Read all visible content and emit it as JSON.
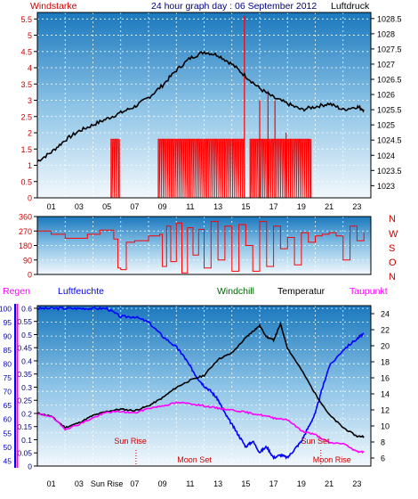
{
  "colors": {
    "background": "#ffffff",
    "plot_top": "#1f7fc0",
    "plot_bottom": "#eef6fb",
    "wind": "#ff0000",
    "pressure": "#000000",
    "direction": "#ff0000",
    "humidity": "#0000ff",
    "windchill": "#006400",
    "temperature": "#000000",
    "dewpoint": "#ff00ff",
    "rain": "#ff00ff",
    "navy_text": "#000080",
    "red_text": "#cc0000"
  },
  "top": {
    "left_title": "Windstarke",
    "center_title": "24 hour graph day : 06 September 2012",
    "right_title": "Luftdruck"
  },
  "middle": {
    "compass_labels": [
      "N",
      "W",
      "S",
      "O",
      "N"
    ]
  },
  "bottom": {
    "regen_label": "Regen",
    "humidity_label": "Luftfeuchte",
    "windchill_label": "Windchill",
    "temperature_label": "Temperatur",
    "dewpoint_label": "Taupunkt",
    "annotations": [
      {
        "text": "Sun Rise",
        "hour": 6.7,
        "row": "upper"
      },
      {
        "text": "Moon Set",
        "hour": 11.3,
        "row": "lower"
      },
      {
        "text": "Sun Set",
        "hour": 20.0,
        "row": "upper"
      },
      {
        "text": "Moon Rise",
        "hour": 21.2,
        "row": "lower"
      }
    ],
    "sun_rise_tick": "Sun Rise"
  },
  "chart_data": [
    {
      "type": "line",
      "name": "wind-pressure",
      "x_ticks": [
        "01",
        "03",
        "05",
        "07",
        "09",
        "11",
        "13",
        "15",
        "17",
        "19",
        "21",
        "23"
      ],
      "x_range_hours": [
        0,
        24
      ],
      "y_left": {
        "label": "Windstarke",
        "ticks": [
          "0",
          "0.5",
          "1",
          "1.5",
          "2",
          "2.5",
          "3",
          "3.5",
          "4",
          "4.5",
          "5",
          "5.5"
        ],
        "range": [
          0,
          5.7
        ]
      },
      "y_right": {
        "label": "Luftdruck",
        "ticks": [
          "1023",
          "1023.5",
          "1024",
          "1024.5",
          "1025",
          "1025.5",
          "1026",
          "1026.5",
          "1027",
          "1027.5",
          "1028",
          "1028.5"
        ],
        "range": [
          1022.6,
          1028.7
        ]
      },
      "pressure": {
        "x": [
          0,
          1,
          2,
          3,
          4,
          5,
          6,
          7,
          8,
          9,
          10,
          11,
          12,
          13,
          14,
          15,
          16,
          17,
          18,
          19,
          20,
          21,
          22,
          23,
          23.5
        ],
        "y": [
          1023.8,
          1024.1,
          1024.5,
          1024.8,
          1025.0,
          1025.2,
          1025.4,
          1025.6,
          1025.9,
          1026.3,
          1026.8,
          1027.2,
          1027.4,
          1027.3,
          1027.0,
          1026.6,
          1026.2,
          1025.9,
          1025.7,
          1025.5,
          1025.6,
          1025.7,
          1025.5,
          1025.6,
          1025.5
        ]
      },
      "wind": {
        "gust_segments": [
          [
            5.3,
            5.9,
            1.8
          ],
          [
            8.7,
            14.9,
            1.8
          ],
          [
            15.3,
            19.7,
            1.8
          ]
        ],
        "spikes": [
          [
            14.9,
            5.6
          ],
          [
            16.0,
            3.0
          ],
          [
            16.6,
            3.3
          ],
          [
            17.1,
            3.0
          ],
          [
            17.9,
            2.0
          ]
        ]
      }
    },
    {
      "type": "line",
      "name": "wind-direction",
      "x_range_hours": [
        0,
        24
      ],
      "y_ticks": [
        "0",
        "90",
        "180",
        "270",
        "360"
      ],
      "y_range": [
        0,
        360
      ],
      "direction": {
        "x": [
          0,
          1,
          2,
          3,
          3.6,
          4.5,
          5.5,
          5.8,
          6.0,
          6.4,
          7.0,
          7.5,
          8.0,
          8.8,
          9.0,
          9.3,
          9.6,
          10.0,
          10.4,
          10.8,
          11.2,
          11.6,
          12.0,
          12.5,
          13.0,
          13.5,
          14.0,
          14.5,
          15.0,
          15.5,
          16.0,
          16.5,
          17.0,
          17.5,
          18.0,
          18.5,
          19.0,
          19.5,
          20.0,
          20.5,
          21.0,
          21.5,
          22.0,
          22.5,
          23.0,
          23.5
        ],
        "y": [
          270,
          250,
          225,
          225,
          250,
          275,
          220,
          40,
          30,
          200,
          210,
          210,
          240,
          250,
          50,
          300,
          80,
          320,
          10,
          290,
          120,
          280,
          40,
          330,
          90,
          300,
          20,
          310,
          180,
          20,
          330,
          50,
          300,
          160,
          230,
          60,
          260,
          200,
          240,
          250,
          260,
          240,
          90,
          300,
          210,
          260
        ]
      }
    },
    {
      "type": "line",
      "name": "humidity-temperature",
      "x_range_hours": [
        0,
        24
      ],
      "y_humidity": {
        "ticks": [
          "45",
          "50",
          "55",
          "60",
          "65",
          "70",
          "75",
          "80",
          "85",
          "90",
          "95",
          "100"
        ],
        "range": [
          43,
          101
        ]
      },
      "y_regen": {
        "ticks": [
          "0",
          "0.05",
          "0.1",
          "0.15",
          "0.2",
          "0.25",
          "0.3",
          "0.35",
          "0.4",
          "0.45",
          "0.5",
          "0.55",
          "0.6"
        ],
        "range": [
          0,
          0.61
        ]
      },
      "y_temp": {
        "ticks": [
          "6",
          "8",
          "10",
          "12",
          "14",
          "16",
          "18",
          "20",
          "22",
          "24"
        ],
        "range": [
          5,
          25
        ]
      },
      "humidity": {
        "x": [
          0,
          1,
          2,
          3,
          4,
          5,
          6,
          7,
          8,
          9,
          10,
          10.5,
          11,
          11.5,
          12,
          12.5,
          13,
          13.5,
          14,
          14.5,
          15,
          15.5,
          16,
          16.5,
          17,
          17.5,
          18,
          18.5,
          19,
          19.5,
          20,
          20.5,
          21,
          22,
          23,
          23.5
        ],
        "y": [
          100,
          100,
          100,
          100,
          100,
          100,
          97,
          97,
          95,
          90,
          86,
          83,
          79,
          75,
          72,
          70,
          67,
          62,
          58,
          54,
          50,
          52,
          48,
          50,
          46,
          47,
          46,
          49,
          52,
          57,
          62,
          71,
          79,
          85,
          89,
          91
        ]
      },
      "temperature": {
        "x": [
          0,
          1,
          2,
          3,
          4,
          5,
          6,
          7,
          8,
          9,
          10,
          11,
          12,
          13,
          14,
          15,
          15.5,
          16,
          16.5,
          17,
          17.5,
          18,
          19,
          20,
          21,
          22,
          23,
          23.5
        ],
        "y": [
          11.6,
          11.2,
          9.8,
          10.4,
          11.3,
          11.8,
          12.1,
          11.9,
          12.5,
          13.5,
          14.8,
          15.7,
          16.3,
          18.3,
          19.1,
          21.0,
          21.8,
          22.5,
          21.1,
          20.7,
          22.7,
          19.7,
          17.0,
          14.0,
          11.4,
          9.8,
          8.7,
          8.7
        ]
      },
      "dewpoint": {
        "x": [
          0,
          1,
          2,
          3,
          4,
          5,
          6,
          7,
          8,
          9,
          10,
          11,
          12,
          13,
          14,
          15,
          16,
          17,
          18,
          19,
          20,
          21,
          22,
          23,
          23.5
        ],
        "y": [
          11.5,
          11.2,
          9.6,
          10.2,
          11.0,
          11.7,
          11.8,
          11.6,
          12.2,
          12.5,
          12.9,
          12.8,
          12.5,
          12.2,
          12.0,
          11.7,
          11.4,
          11.0,
          10.8,
          9.4,
          8.9,
          7.9,
          7.8,
          6.8,
          6.8
        ]
      }
    }
  ]
}
